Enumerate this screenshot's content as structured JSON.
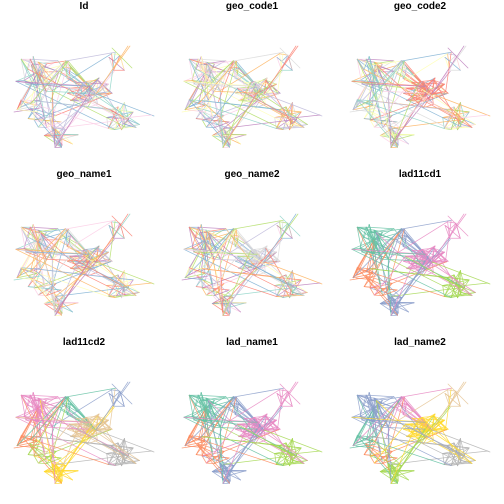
{
  "chart_data": [
    {
      "type": "network",
      "title": "Id",
      "palette": [
        "#8DD3C7",
        "#FFFFB3",
        "#BEBADA",
        "#FB8072",
        "#80B1D3",
        "#FDB462",
        "#B3DE69",
        "#FCCDE5",
        "#D9D9D9",
        "#BC80BD"
      ],
      "coloring": "many"
    },
    {
      "type": "network",
      "title": "geo_code1",
      "palette": [
        "#8DD3C7",
        "#FFFFB3",
        "#BEBADA",
        "#FB8072",
        "#80B1D3",
        "#FDB462",
        "#B3DE69",
        "#FCCDE5",
        "#D9D9D9",
        "#BC80BD"
      ],
      "coloring": "many"
    },
    {
      "type": "network",
      "title": "geo_code2",
      "palette": [
        "#FB8072",
        "#8DD3C7",
        "#FFFFB3",
        "#BEBADA",
        "#80B1D3",
        "#FDB462",
        "#B3DE69",
        "#FCCDE5",
        "#D9D9D9",
        "#BC80BD"
      ],
      "coloring": "many-hub"
    },
    {
      "type": "network",
      "title": "geo_name1",
      "palette": [
        "#8DD3C7",
        "#FFFFB3",
        "#BEBADA",
        "#FB8072",
        "#80B1D3",
        "#FDB462",
        "#B3DE69",
        "#FCCDE5",
        "#D9D9D9",
        "#BC80BD"
      ],
      "coloring": "many"
    },
    {
      "type": "network",
      "title": "geo_name2",
      "palette": [
        "#D9D9D9",
        "#8DD3C7",
        "#FFFFB3",
        "#BEBADA",
        "#FB8072",
        "#80B1D3",
        "#FDB462",
        "#B3DE69",
        "#FCCDE5",
        "#BC80BD"
      ],
      "coloring": "many-hub"
    },
    {
      "type": "network",
      "title": "lad11cd1",
      "palette": [
        "#66C2A5",
        "#FC8D62",
        "#8DA0CB",
        "#E78AC3",
        "#A6D854",
        "#FFD92F",
        "#E5C494",
        "#B3B3B3"
      ],
      "cluster_colors": {
        "A": "#66C2A5",
        "B": "#E78AC3",
        "C": "#FC8D62",
        "D": "#8DA0CB",
        "E": "#A6D854",
        "F": "#8DA0CB",
        "G": "#FC8D62",
        "H": "#E78AC3"
      }
    },
    {
      "type": "network",
      "title": "lad11cd2",
      "palette": [
        "#66C2A5",
        "#FC8D62",
        "#8DA0CB",
        "#E78AC3",
        "#A6D854",
        "#FFD92F",
        "#E5C494",
        "#B3B3B3"
      ],
      "cluster_colors": {
        "A": "#E78AC3",
        "B": "#E5C494",
        "C": "#A6D854",
        "D": "#FFD92F",
        "E": "#B3B3B3",
        "F": "#66C2A5",
        "G": "#FC8D62",
        "H": "#8DA0CB"
      }
    },
    {
      "type": "network",
      "title": "lad_name1",
      "palette": [
        "#66C2A5",
        "#FC8D62",
        "#8DA0CB",
        "#E78AC3",
        "#A6D854",
        "#FFD92F",
        "#E5C494",
        "#B3B3B3"
      ],
      "cluster_colors": {
        "A": "#66C2A5",
        "B": "#E78AC3",
        "C": "#FC8D62",
        "D": "#8DA0CB",
        "E": "#A6D854",
        "F": "#8DA0CB",
        "G": "#FC8D62",
        "H": "#E78AC3"
      }
    },
    {
      "type": "network",
      "title": "lad_name2",
      "palette": [
        "#66C2A5",
        "#FC8D62",
        "#8DA0CB",
        "#E78AC3",
        "#A6D854",
        "#FFD92F",
        "#E5C494",
        "#B3B3B3"
      ],
      "cluster_colors": {
        "A": "#8DA0CB",
        "B": "#FFD92F",
        "C": "#FC8D62",
        "D": "#A6D854",
        "E": "#B3B3B3",
        "F": "#E78AC3",
        "G": "#66C2A5",
        "H": "#E5C494"
      }
    }
  ]
}
